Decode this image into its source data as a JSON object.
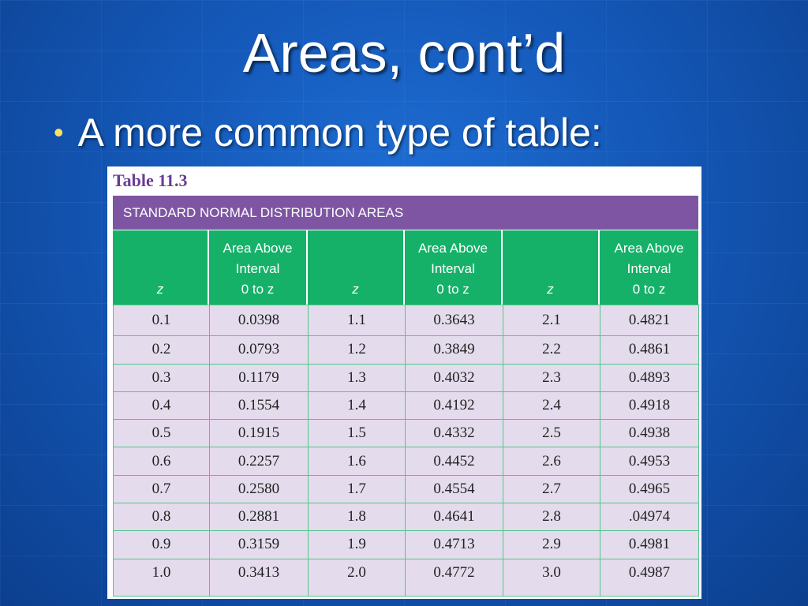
{
  "slide": {
    "title": "Areas, cont’d",
    "bullet": "A more common type of table:"
  },
  "table": {
    "caption": "Table 11.3",
    "band": "STANDARD NORMAL DISTRIBUTION AREAS",
    "headers": [
      [
        "z"
      ],
      [
        "Area Above",
        "Interval",
        "0 to z"
      ],
      [
        "z"
      ],
      [
        "Area Above",
        "Interval",
        "0 to z"
      ],
      [
        "z"
      ],
      [
        "Area Above",
        "Interval",
        "0 to z"
      ]
    ],
    "rows": [
      [
        "0.1",
        "0.0398",
        "1.1",
        "0.3643",
        "2.1",
        "0.4821"
      ],
      [
        "0.2",
        "0.0793",
        "1.2",
        "0.3849",
        "2.2",
        "0.4861"
      ],
      [
        "0.3",
        "0.1179",
        "1.3",
        "0.4032",
        "2.3",
        "0.4893"
      ],
      [
        "0.4",
        "0.1554",
        "1.4",
        "0.4192",
        "2.4",
        "0.4918"
      ],
      [
        "0.5",
        "0.1915",
        "1.5",
        "0.4332",
        "2.5",
        "0.4938"
      ],
      [
        "0.6",
        "0.2257",
        "1.6",
        "0.4452",
        "2.6",
        "0.4953"
      ],
      [
        "0.7",
        "0.2580",
        "1.7",
        "0.4554",
        "2.7",
        "0.4965"
      ],
      [
        "0.8",
        "0.2881",
        "1.8",
        "0.4641",
        "2.8",
        ".04974"
      ],
      [
        "0.9",
        "0.3159",
        "1.9",
        "0.4713",
        "2.9",
        "0.4981"
      ],
      [
        "1.0",
        "0.3413",
        "2.0",
        "0.4772",
        "3.0",
        "0.4987"
      ]
    ]
  },
  "colors": {
    "background": "#1458b8",
    "bullet": "#ffe35a",
    "band": "#7e55a3",
    "header": "#15b168",
    "body": "#e4dcec",
    "caption": "#6b3d94"
  }
}
